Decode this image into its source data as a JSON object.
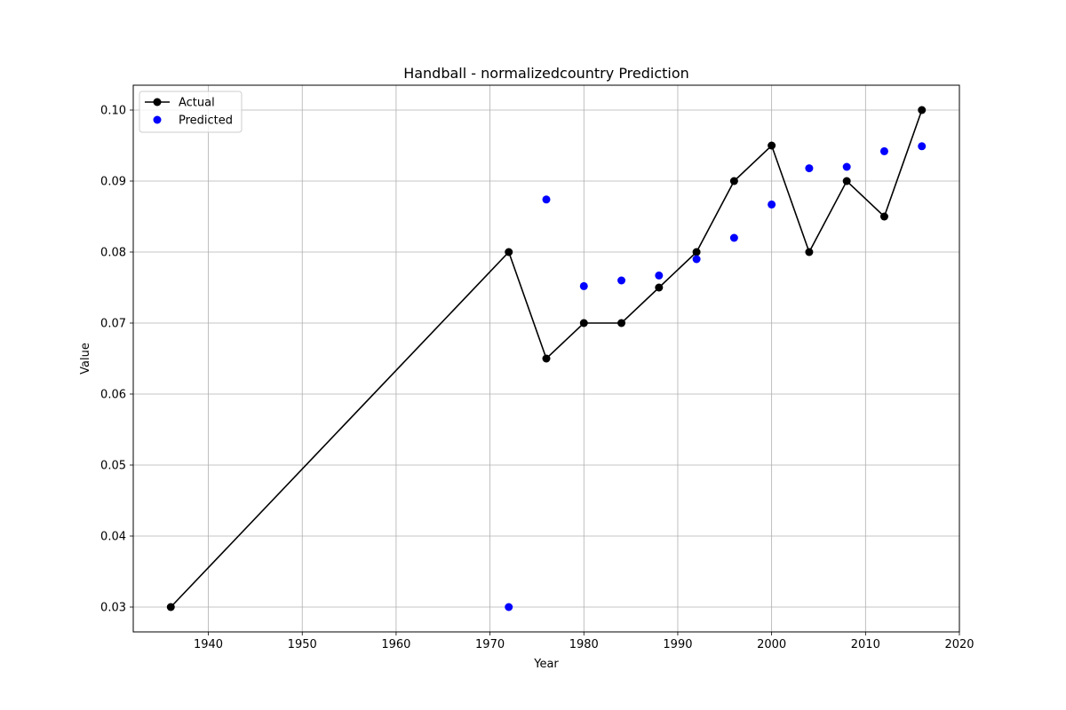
{
  "chart_data": {
    "type": "line",
    "title": "Handball - normalizedcountry Prediction",
    "xlabel": "Year",
    "ylabel": "Value",
    "xlim": [
      1932,
      2020
    ],
    "ylim": [
      0.0265,
      0.1035
    ],
    "xticks": [
      1940,
      1950,
      1960,
      1970,
      1980,
      1990,
      2000,
      2010,
      2020
    ],
    "yticks": [
      0.03,
      0.04,
      0.05,
      0.06,
      0.07,
      0.08,
      0.09,
      0.1
    ],
    "ytick_labels": [
      "0.03",
      "0.04",
      "0.05",
      "0.06",
      "0.07",
      "0.08",
      "0.09",
      "0.10"
    ],
    "grid": true,
    "legend_position": "top-left",
    "series": [
      {
        "name": "Actual",
        "kind": "line-with-markers",
        "color": "#000000",
        "x": [
          1936,
          1972,
          1976,
          1980,
          1984,
          1988,
          1992,
          1996,
          2000,
          2004,
          2008,
          2012,
          2016
        ],
        "y": [
          0.03,
          0.08,
          0.065,
          0.07,
          0.07,
          0.075,
          0.08,
          0.09,
          0.095,
          0.08,
          0.09,
          0.085,
          0.1
        ]
      },
      {
        "name": "Predicted",
        "kind": "scatter",
        "color": "#0000ff",
        "x": [
          1972,
          1976,
          1980,
          1984,
          1988,
          1992,
          1996,
          2000,
          2004,
          2008,
          2012,
          2016
        ],
        "y": [
          0.03,
          0.0874,
          0.0752,
          0.076,
          0.0767,
          0.079,
          0.082,
          0.0867,
          0.0918,
          0.092,
          0.0942,
          0.0949
        ]
      }
    ]
  }
}
